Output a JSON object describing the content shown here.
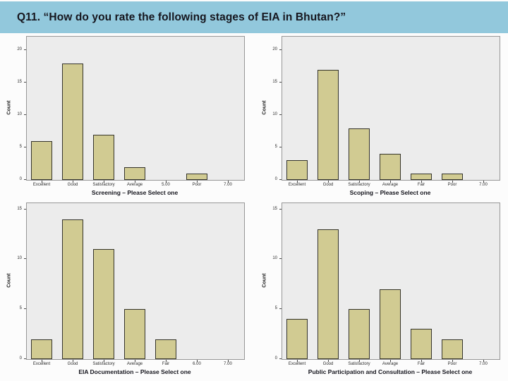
{
  "slide": {
    "title": "Q11. “How do you rate the following stages of EIA in Bhutan?”",
    "header_bg": "#92c8dc"
  },
  "colors": {
    "bar_fill": "#d1cb92",
    "bar_border": "#35342b",
    "plot_bg": "#ececec",
    "plot_border": "#979797",
    "text": "#16161e"
  },
  "chart_data": [
    {
      "type": "bar",
      "id": "screening",
      "title": "Screening – Please Select one",
      "ylabel": "Count",
      "categories": [
        "Excellent",
        "Good",
        "Satisfactory",
        "Average",
        "5.00",
        "Poor",
        "7.00"
      ],
      "values": [
        6,
        18,
        7,
        2,
        0,
        1,
        0
      ],
      "yticks": [
        0,
        5,
        10,
        15,
        20
      ],
      "ylim": [
        0,
        22.1
      ],
      "grid": false,
      "legend": "none",
      "position": "top-left"
    },
    {
      "type": "bar",
      "id": "scoping",
      "title": "Scoping – Please Select one",
      "ylabel": "Count",
      "categories": [
        "Excellent",
        "Good",
        "Satisfactory",
        "Average",
        "Fair",
        "Poor",
        "7.00"
      ],
      "values": [
        3,
        17,
        8,
        4,
        1,
        1,
        0
      ],
      "yticks": [
        0,
        5,
        10,
        15,
        20
      ],
      "ylim": [
        0,
        22.1
      ],
      "grid": false,
      "legend": "none",
      "position": "top-right"
    },
    {
      "type": "bar",
      "id": "eia-documentation",
      "title": "EIA Documentation – Please Select one",
      "ylabel": "Count",
      "categories": [
        "Excellent",
        "Good",
        "Satisfactory",
        "Average",
        "Fair",
        "6.00",
        "7.00"
      ],
      "values": [
        2,
        14,
        11,
        5,
        2,
        0,
        0
      ],
      "yticks": [
        0,
        5,
        10,
        15
      ],
      "ylim": [
        0,
        15.6
      ],
      "grid": false,
      "legend": "none",
      "position": "bottom-left"
    },
    {
      "type": "bar",
      "id": "public-participation",
      "title": "Public Participation and Consultation – Please Select one",
      "ylabel": "Count",
      "categories": [
        "Excellent",
        "Good",
        "Satisfactory",
        "Average",
        "Fair",
        "Poor",
        "7.00"
      ],
      "values": [
        4,
        13,
        5,
        7,
        3,
        2,
        0
      ],
      "yticks": [
        0,
        5,
        10,
        15
      ],
      "ylim": [
        0,
        15.6
      ],
      "grid": false,
      "legend": "none",
      "position": "bottom-right"
    }
  ]
}
